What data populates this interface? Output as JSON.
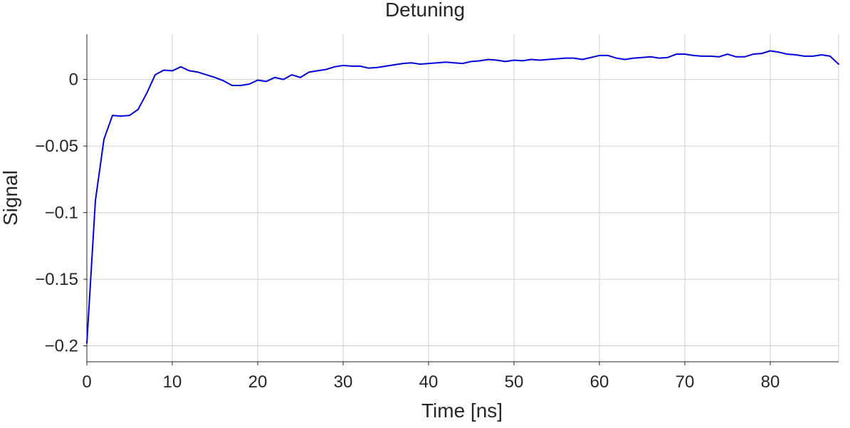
{
  "chart_data": {
    "type": "line",
    "title": "Detuning",
    "xlabel": "Time [ns]",
    "ylabel": "Signal",
    "xlim": [
      0,
      88
    ],
    "ylim": [
      -0.212,
      0.034
    ],
    "grid": true,
    "x_ticks": [
      0,
      10,
      20,
      30,
      40,
      50,
      60,
      70,
      80
    ],
    "x_tick_labels": [
      "0",
      "10",
      "20",
      "30",
      "40",
      "50",
      "60",
      "70",
      "80"
    ],
    "y_ticks": [
      -0.2,
      -0.15,
      -0.1,
      -0.05,
      0
    ],
    "y_tick_labels": [
      "−0.2",
      "−0.15",
      "−0.1",
      "−0.05",
      "0"
    ],
    "series": [
      {
        "color": "#0000dd",
        "x": [
          0,
          1,
          2,
          3,
          4,
          5,
          6,
          7,
          8,
          9,
          10,
          11,
          12,
          13,
          14,
          15,
          16,
          17,
          18,
          19,
          20,
          21,
          22,
          23,
          24,
          25,
          26,
          27,
          28,
          29,
          30,
          31,
          32,
          33,
          34,
          35,
          36,
          37,
          38,
          39,
          40,
          41,
          42,
          43,
          44,
          45,
          46,
          47,
          48,
          49,
          50,
          51,
          52,
          53,
          54,
          55,
          56,
          57,
          58,
          59,
          60,
          61,
          62,
          63,
          64,
          65,
          66,
          67,
          68,
          69,
          70,
          71,
          72,
          73,
          74,
          75,
          76,
          77,
          78,
          79,
          80,
          81,
          82,
          83,
          84,
          85,
          86,
          87,
          88
        ],
        "values": [
          -0.198,
          -0.091,
          -0.045,
          -0.027,
          -0.0275,
          -0.027,
          -0.0225,
          -0.0105,
          0.0035,
          0.007,
          0.0065,
          0.0095,
          0.0065,
          0.0055,
          0.0035,
          0.0015,
          -0.001,
          -0.0045,
          -0.0045,
          -0.0035,
          -0.0005,
          -0.0015,
          0.0015,
          0.0,
          0.0035,
          0.0015,
          0.0055,
          0.0065,
          0.0075,
          0.0095,
          0.0105,
          0.01,
          0.01,
          0.0085,
          0.009,
          0.01,
          0.011,
          0.012,
          0.0125,
          0.0115,
          0.012,
          0.0125,
          0.013,
          0.0125,
          0.012,
          0.0135,
          0.014,
          0.015,
          0.0145,
          0.0135,
          0.0145,
          0.014,
          0.015,
          0.0145,
          0.015,
          0.0155,
          0.016,
          0.016,
          0.015,
          0.0165,
          0.018,
          0.018,
          0.016,
          0.015,
          0.016,
          0.0165,
          0.017,
          0.016,
          0.0165,
          0.019,
          0.019,
          0.018,
          0.0175,
          0.0175,
          0.017,
          0.019,
          0.017,
          0.017,
          0.019,
          0.0195,
          0.0215,
          0.0205,
          0.019,
          0.0185,
          0.0175,
          0.0175,
          0.0185,
          0.0175,
          0.0115
        ]
      }
    ]
  }
}
